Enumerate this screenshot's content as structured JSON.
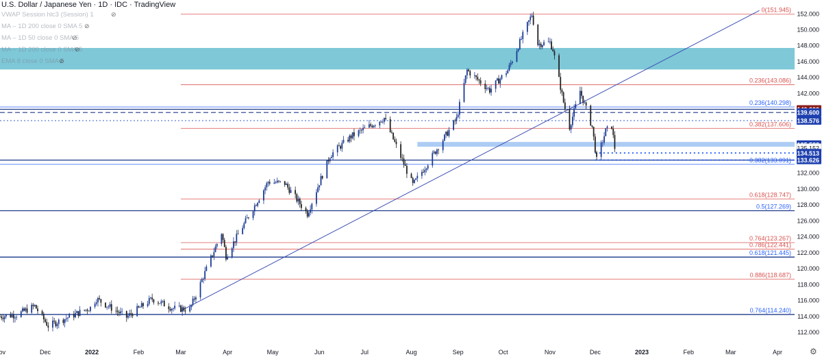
{
  "header": {
    "title": "U.S. Dollar / Japanese Yen · 1D · IDC · TradingView",
    "indicators": [
      "VWAP Session hlc3 (Session) 1",
      "MA – 1D 200 close 0 SMA 5",
      "MA – 1D 50 close 0 SMA 5",
      "MA – 1D 200 close 0 SMA 5",
      "EMA 8 close 0 SMA 5"
    ],
    "indicator_icon": "eye-slash-icon"
  },
  "settings_icon": "gear-icon",
  "colors": {
    "background": "#ffffff",
    "zone": "#7ec8d8",
    "fib_red": "#d9534f",
    "fib_blue": "#2962ff",
    "support": "#1e3a8a",
    "trend": "#3f51b5",
    "candle_up": "#1b3a94",
    "candle_down": "#222222",
    "price_label": "#1e40af",
    "dark_red_label": "#8b1d1d"
  },
  "chart_data": {
    "type": "candlestick",
    "symbol": "USD/JPY",
    "timeframe": "1D",
    "ylim": [
      110.8,
      152.4
    ],
    "y_ticks": [
      112,
      114,
      116,
      118,
      120,
      122,
      124,
      126,
      128,
      130,
      132,
      134,
      136,
      138,
      140,
      142,
      144,
      146,
      148,
      150,
      152
    ],
    "x_ticks": [
      "Nov",
      "Dec",
      "2022",
      "Feb",
      "Mar",
      "Apr",
      "May",
      "Jun",
      "Jul",
      "Aug",
      "Sep",
      "Oct",
      "Nov",
      "Dec",
      "2023",
      "Feb",
      "Mar",
      "Apr"
    ],
    "x_tick_dates": [
      "2021-11-01",
      "2021-12-01",
      "2022-01-01",
      "2022-02-01",
      "2022-03-01",
      "2022-04-01",
      "2022-05-01",
      "2022-06-01",
      "2022-07-01",
      "2022-08-01",
      "2022-09-01",
      "2022-10-01",
      "2022-11-01",
      "2022-12-01",
      "2023-01-01",
      "2023-02-01",
      "2023-03-01",
      "2023-04-01"
    ],
    "price_path": [
      [
        "2021-11-01",
        114.0
      ],
      [
        "2021-11-12",
        114.2
      ],
      [
        "2021-11-24",
        115.3
      ],
      [
        "2021-12-03",
        112.8
      ],
      [
        "2021-12-31",
        115.1
      ],
      [
        "2022-01-04",
        116.2
      ],
      [
        "2022-01-24",
        113.9
      ],
      [
        "2022-02-10",
        116.2
      ],
      [
        "2022-02-24",
        115.0
      ],
      [
        "2022-03-07",
        114.9
      ],
      [
        "2022-03-28",
        124.5
      ],
      [
        "2022-03-31",
        121.6
      ],
      [
        "2022-04-28",
        130.9
      ],
      [
        "2022-05-09",
        130.7
      ],
      [
        "2022-05-24",
        126.9
      ],
      [
        "2022-06-08",
        134.2
      ],
      [
        "2022-06-22",
        136.6
      ],
      [
        "2022-07-14",
        138.9
      ],
      [
        "2022-08-02",
        130.5
      ],
      [
        "2022-08-11",
        133.0
      ],
      [
        "2022-08-31",
        138.8
      ],
      [
        "2022-09-07",
        144.9
      ],
      [
        "2022-09-22",
        142.4
      ],
      [
        "2022-10-04",
        144.9
      ],
      [
        "2022-10-20",
        151.9
      ],
      [
        "2022-10-24",
        148.2
      ],
      [
        "2022-11-01",
        148.4
      ],
      [
        "2022-11-03",
        147.5
      ],
      [
        "2022-11-10",
        140.9
      ],
      [
        "2022-11-14",
        137.8
      ],
      [
        "2022-11-21",
        142.3
      ],
      [
        "2022-11-29",
        137.8
      ],
      [
        "2022-12-02",
        133.6
      ],
      [
        "2022-12-08",
        137.3
      ],
      [
        "2022-12-12",
        137.9
      ],
      [
        "2022-12-14",
        135.15
      ]
    ],
    "current_price": 135.152,
    "fib_levels": [
      {
        "label": "0(151.945)",
        "value": 151.945,
        "color": "red",
        "from": "2022-03-01"
      },
      {
        "label": "0.236(143.086)",
        "value": 143.086,
        "color": "red",
        "from": "2022-03-01"
      },
      {
        "label": "0.236(140.298)",
        "value": 140.298,
        "color": "blue",
        "from": "2021-11-01"
      },
      {
        "label": "0.382(137.606)",
        "value": 137.606,
        "color": "red",
        "from": "2022-03-01"
      },
      {
        "label": "0.382(133.091)",
        "value": 133.091,
        "color": "blue",
        "from": "2021-11-01"
      },
      {
        "label": "0.618(128.747)",
        "value": 128.747,
        "color": "red",
        "from": "2022-03-01"
      },
      {
        "label": "0.5(127.269)",
        "value": 127.269,
        "color": "blue",
        "from": "2021-11-01"
      },
      {
        "label": "0.764(123.267)",
        "value": 123.267,
        "color": "red",
        "from": "2022-03-01"
      },
      {
        "label": "0.786(122.441)",
        "value": 122.441,
        "color": "red",
        "from": "2022-03-01"
      },
      {
        "label": "0.618(121.445)",
        "value": 121.445,
        "color": "blue",
        "from": "2021-11-01"
      },
      {
        "label": "0.886(118.687)",
        "value": 118.687,
        "color": "red",
        "from": "2022-03-01"
      },
      {
        "label": "0.764(114.240)",
        "value": 114.24,
        "color": "blue",
        "from": "2021-11-01"
      }
    ],
    "horizontal_lines": [
      {
        "value": 140.0,
        "style": "solid",
        "color": "navy"
      },
      {
        "value": 139.6,
        "style": "dashed",
        "color": "navy"
      },
      {
        "value": 138.576,
        "style": "dotted",
        "color": "blue"
      },
      {
        "value": 133.626,
        "style": "solid",
        "color": "navy"
      },
      {
        "value": 127.269,
        "style": "solid",
        "color": "navy"
      },
      {
        "value": 121.445,
        "style": "solid",
        "color": "navy"
      },
      {
        "value": 114.24,
        "style": "solid",
        "color": "navy"
      }
    ],
    "zones": [
      {
        "from": 145.0,
        "to": 147.7,
        "color": "cyan"
      },
      {
        "from": 135.3,
        "to": 135.9,
        "start": "2022-08-05",
        "color": "lightblue"
      }
    ],
    "dotted_support": [
      {
        "value": 134.513,
        "start": "2022-12-01"
      },
      {
        "value": 133.626,
        "start": "2022-12-01"
      }
    ],
    "trendline": {
      "start": [
        "2022-03-01",
        114.7
      ],
      "end": [
        "2023-03-20",
        152.4
      ]
    },
    "price_labels": [
      {
        "text": "152.000",
        "value": 152.0
      },
      {
        "text": "140.000",
        "value": 140.0,
        "style": "darkred"
      },
      {
        "text": "139.600",
        "value": 139.6,
        "style": "blue"
      },
      {
        "text": "138.576",
        "value": 138.576,
        "style": "blue"
      },
      {
        "text": "135.583",
        "value": 135.583,
        "style": "blue"
      },
      {
        "text": "135.152",
        "value": 135.152,
        "style": "white"
      },
      {
        "text": "134.513",
        "value": 134.513,
        "style": "blue"
      },
      {
        "text": "133.626",
        "value": 133.626,
        "style": "blue"
      }
    ]
  }
}
